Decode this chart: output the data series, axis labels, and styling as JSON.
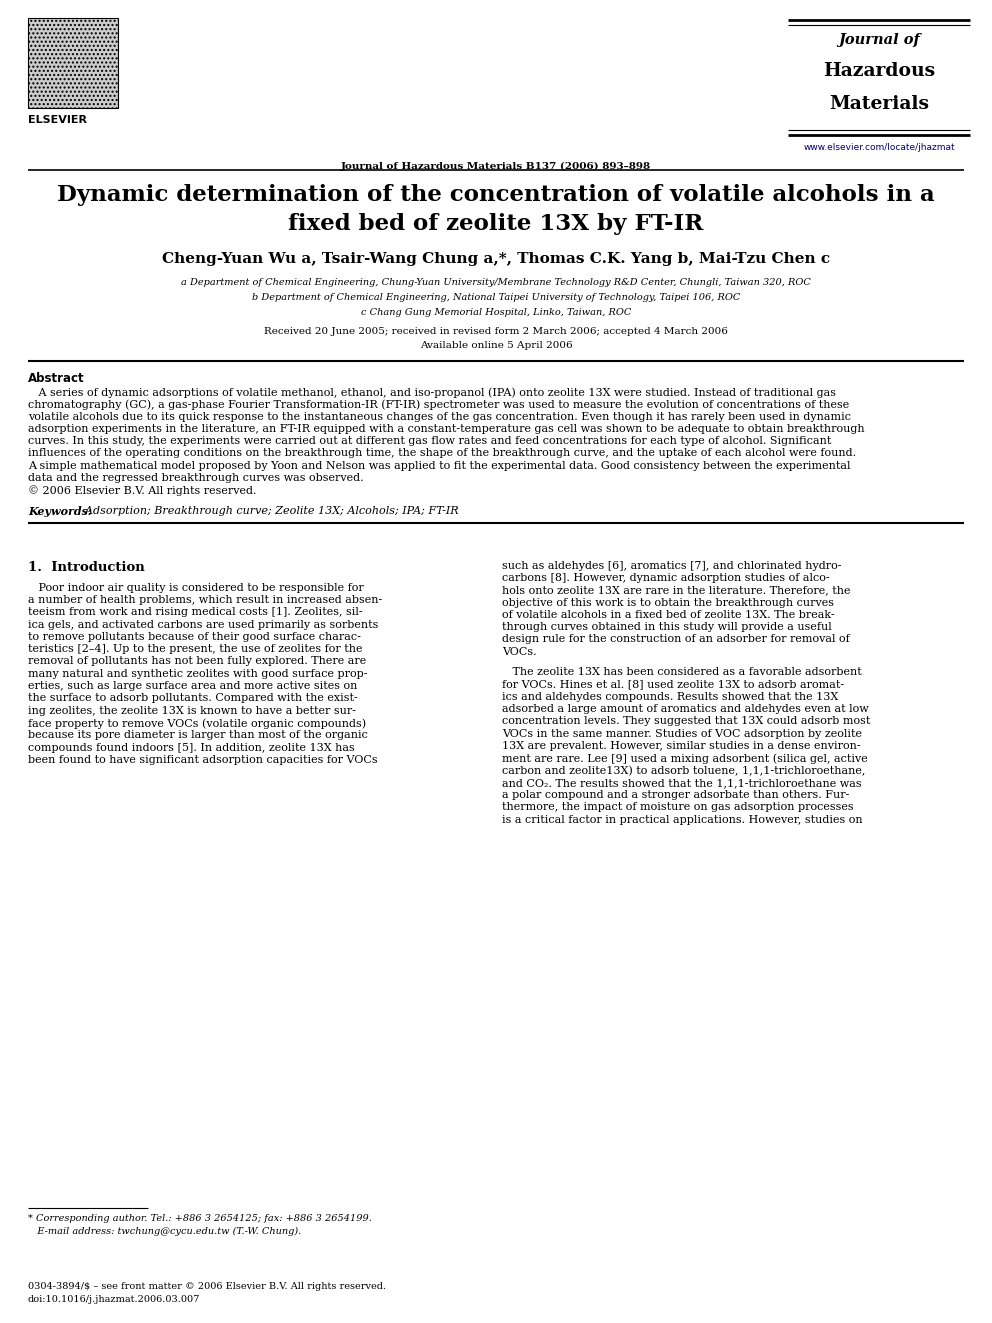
{
  "background_color": "#ffffff",
  "page_width": 9.92,
  "page_height": 13.23,
  "dpi": 100,
  "journal_header_center": "Journal of Hazardous Materials B137 (2006) 893–898",
  "journal_name_line1": "Journal of",
  "journal_name_line2": "Hazardous",
  "journal_name_line3": "Materials",
  "journal_url": "www.elsevier.com/locate/jhazmat",
  "title_line1": "Dynamic determination of the concentration of volatile alcohols in a",
  "title_line2": "fixed bed of zeolite 13X by FT-IR",
  "authors": "Cheng-Yuan Wu a, Tsair-Wang Chung a,*, Thomas C.K. Yang b, Mai-Tzu Chen c",
  "affil_a": "a Department of Chemical Engineering, Chung-Yuan University/Membrane Technology R&D Center, Chungli, Taiwan 320, ROC",
  "affil_b": "b Department of Chemical Engineering, National Taipei University of Technology, Taipei 106, ROC",
  "affil_c": "c Chang Gung Memorial Hospital, Linko, Taiwan, ROC",
  "received": "Received 20 June 2005; received in revised form 2 March 2006; accepted 4 March 2006",
  "available": "Available online 5 April 2006",
  "abstract_title": "Abstract",
  "abstract_lines": [
    "   A series of dynamic adsorptions of volatile methanol, ethanol, and iso-propanol (IPA) onto zeolite 13X were studied. Instead of traditional gas",
    "chromatography (GC), a gas-phase Fourier Transformation-IR (FT-IR) spectrometer was used to measure the evolution of concentrations of these",
    "volatile alcohols due to its quick response to the instantaneous changes of the gas concentration. Even though it has rarely been used in dynamic",
    "adsorption experiments in the literature, an FT-IR equipped with a constant-temperature gas cell was shown to be adequate to obtain breakthrough",
    "curves. In this study, the experiments were carried out at different gas flow rates and feed concentrations for each type of alcohol. Significant",
    "influences of the operating conditions on the breakthrough time, the shape of the breakthrough curve, and the uptake of each alcohol were found.",
    "A simple mathematical model proposed by Yoon and Nelson was applied to fit the experimental data. Good consistency between the experimental",
    "data and the regressed breakthrough curves was observed.",
    "© 2006 Elsevier B.V. All rights reserved."
  ],
  "keywords_label": "Keywords:",
  "keywords_text": "  Adsorption; Breakthrough curve; Zeolite 13X; Alcohols; IPA; FT-IR",
  "section1_title": "1.  Introduction",
  "col1_lines": [
    "   Poor indoor air quality is considered to be responsible for",
    "a number of health problems, which result in increased absen-",
    "teeism from work and rising medical costs [1]. Zeolites, sil-",
    "ica gels, and activated carbons are used primarily as sorbents",
    "to remove pollutants because of their good surface charac-",
    "teristics [2–4]. Up to the present, the use of zeolites for the",
    "removal of pollutants has not been fully explored. There are",
    "many natural and synthetic zeolites with good surface prop-",
    "erties, such as large surface area and more active sites on",
    "the surface to adsorb pollutants. Compared with the exist-",
    "ing zeolites, the zeolite 13X is known to have a better sur-",
    "face property to remove VOCs (volatile organic compounds)",
    "because its pore diameter is larger than most of the organic",
    "compounds found indoors [5]. In addition, zeolite 13X has",
    "been found to have significant adsorption capacities for VOCs"
  ],
  "col2_lines_p1": [
    "such as aldehydes [6], aromatics [7], and chlorinated hydro-",
    "carbons [8]. However, dynamic adsorption studies of alco-",
    "hols onto zeolite 13X are rare in the literature. Therefore, the",
    "objective of this work is to obtain the breakthrough curves",
    "of volatile alcohols in a fixed bed of zeolite 13X. The break-",
    "through curves obtained in this study will provide a useful",
    "design rule for the construction of an adsorber for removal of",
    "VOCs."
  ],
  "col2_lines_p2": [
    "   The zeolite 13X has been considered as a favorable adsorbent",
    "for VOCs. Hines et al. [8] used zeolite 13X to adsorb aromat-",
    "ics and aldehydes compounds. Results showed that the 13X",
    "adsorbed a large amount of aromatics and aldehydes even at low",
    "concentration levels. They suggested that 13X could adsorb most",
    "VOCs in the same manner. Studies of VOC adsorption by zeolite",
    "13X are prevalent. However, similar studies in a dense environ-",
    "ment are rare. Lee [9] used a mixing adsorbent (silica gel, active",
    "carbon and zeolite13X) to adsorb toluene, 1,1,1-trichloroethane,",
    "and CO₂. The results showed that the 1,1,1-trichloroethane was",
    "a polar compound and a stronger adsorbate than others. Fur-",
    "thermore, the impact of moisture on gas adsorption processes",
    "is a critical factor in practical applications. However, studies on"
  ],
  "footnote_star": "* Corresponding author. Tel.: +886 3 2654125; fax: +886 3 2654199.",
  "footnote_email": "   E-mail address: twchung@cycu.edu.tw (T.-W. Chung).",
  "footer_left": "0304-3894/$ – see front matter © 2006 Elsevier B.V. All rights reserved.",
  "footer_doi": "doi:10.1016/j.jhazmat.2006.03.007"
}
